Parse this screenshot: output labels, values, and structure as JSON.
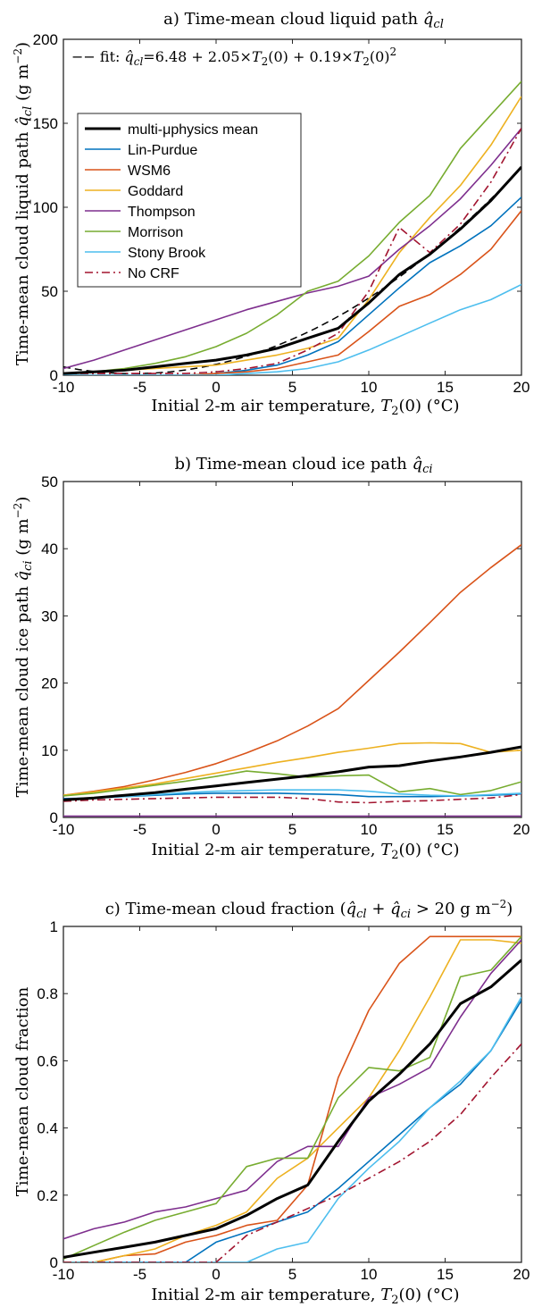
{
  "chart_data": [
    {
      "type": "line",
      "title": "a) Time-mean cloud liquid path q̂cl",
      "xlabel": "Initial 2-m air temperature, T₂(0) (°C)",
      "ylabel": "Time-mean cloud liquid path q̂cl (g m⁻²)",
      "xlim": [
        -10,
        20
      ],
      "ylim": [
        0,
        200
      ],
      "xticks": [
        -10,
        -5,
        0,
        5,
        10,
        15,
        20
      ],
      "yticks": [
        0,
        50,
        100,
        150,
        200
      ],
      "grid": false,
      "legend_position": "upper-left",
      "annotation": "fit: q̂cl=6.48 + 2.05×T₂(0) + 0.19×T₂(0)²",
      "fit": {
        "a": 6.48,
        "b": 2.05,
        "c": 0.19,
        "color": "#000000"
      },
      "x": [
        -10,
        -8,
        -6,
        -4,
        -2,
        0,
        2,
        4,
        6,
        8,
        10,
        12,
        14,
        16,
        18,
        20
      ],
      "series": [
        {
          "name": "multi-μphysics mean",
          "color": "#000000",
          "values": [
            1,
            2,
            3,
            5,
            7,
            9,
            12,
            16,
            22,
            28,
            43,
            60,
            72,
            87,
            104,
            124
          ]
        },
        {
          "name": "Lin-Purdue",
          "color": "#0072BD",
          "values": [
            0,
            0,
            0,
            0,
            0,
            1,
            3,
            6,
            12,
            20,
            36,
            52,
            67,
            77,
            89,
            106
          ]
        },
        {
          "name": "WSM6",
          "color": "#D95319",
          "values": [
            0,
            0,
            0,
            0,
            0,
            1,
            2,
            4,
            8,
            12,
            26,
            41,
            48,
            60,
            75,
            98
          ]
        },
        {
          "name": "Goddard",
          "color": "#EDB120",
          "values": [
            1,
            2,
            3,
            4,
            5,
            6,
            9,
            12,
            16,
            22,
            45,
            73,
            94,
            113,
            137,
            166
          ]
        },
        {
          "name": "Thompson",
          "color": "#7E2F8E",
          "values": [
            4,
            9,
            15,
            21,
            27,
            33,
            39,
            44,
            49,
            53,
            59,
            75,
            89,
            105,
            125,
            147
          ]
        },
        {
          "name": "Morrison",
          "color": "#77AC30",
          "values": [
            1,
            2,
            4,
            7,
            11,
            17,
            25,
            36,
            50,
            56,
            71,
            91,
            107,
            135,
            155,
            175
          ]
        },
        {
          "name": "Stony Brook",
          "color": "#4DBEEE",
          "values": [
            0,
            0,
            0,
            0,
            0,
            0,
            1,
            2,
            4,
            8,
            15,
            23,
            31,
            39,
            45,
            54
          ]
        },
        {
          "name": "No CRF",
          "color": "#A2142F",
          "dash": "dashdot",
          "values": [
            1,
            1,
            1,
            1,
            1,
            2,
            4,
            7,
            15,
            25,
            50,
            88,
            73,
            90,
            115,
            147
          ]
        }
      ]
    },
    {
      "type": "line",
      "title": "b) Time-mean cloud ice path q̂ci",
      "xlabel": "Initial 2-m air temperature, T₂(0) (°C)",
      "ylabel": "Time-mean cloud ice path q̂ci (g m⁻²)",
      "xlim": [
        -10,
        20
      ],
      "ylim": [
        0,
        50
      ],
      "xticks": [
        -10,
        -5,
        0,
        5,
        10,
        15,
        20
      ],
      "yticks": [
        0,
        10,
        20,
        30,
        40,
        50
      ],
      "grid": false,
      "x": [
        -10,
        -8,
        -6,
        -4,
        -2,
        0,
        2,
        4,
        6,
        8,
        10,
        12,
        14,
        16,
        18,
        20
      ],
      "series": [
        {
          "name": "multi-μphysics mean",
          "color": "#000000",
          "values": [
            2.6,
            2.9,
            3.3,
            3.7,
            4.2,
            4.7,
            5.2,
            5.7,
            6.2,
            6.8,
            7.5,
            7.7,
            8.4,
            9.0,
            9.7,
            10.5
          ]
        },
        {
          "name": "Lin-Purdue",
          "color": "#0072BD",
          "values": [
            2.8,
            2.9,
            3.1,
            3.3,
            3.5,
            3.6,
            3.6,
            3.6,
            3.5,
            3.4,
            3.1,
            3.1,
            3.1,
            3.2,
            3.3,
            3.5
          ]
        },
        {
          "name": "WSM6",
          "color": "#D95319",
          "values": [
            3.3,
            3.9,
            4.6,
            5.6,
            6.7,
            8.0,
            9.6,
            11.4,
            13.6,
            16.2,
            20.4,
            24.6,
            29.0,
            33.5,
            37.2,
            40.6
          ]
        },
        {
          "name": "Goddard",
          "color": "#EDB120",
          "values": [
            3.3,
            3.8,
            4.4,
            5.0,
            5.8,
            6.6,
            7.4,
            8.2,
            8.9,
            9.7,
            10.3,
            11.0,
            11.1,
            11.0,
            9.7,
            10.0
          ]
        },
        {
          "name": "Thompson",
          "color": "#7E2F8E",
          "values": [
            0.2,
            0.2,
            0.2,
            0.2,
            0.2,
            0.2,
            0.2,
            0.2,
            0.2,
            0.2,
            0.2,
            0.2,
            0.2,
            0.2,
            0.2,
            0.2
          ]
        },
        {
          "name": "Morrison",
          "color": "#77AC30",
          "values": [
            3.2,
            3.6,
            4.2,
            4.8,
            5.4,
            6.1,
            6.9,
            6.5,
            6.0,
            6.2,
            6.3,
            3.8,
            4.3,
            3.4,
            4.0,
            5.3
          ]
        },
        {
          "name": "Stony Brook",
          "color": "#4DBEEE",
          "values": [
            2.6,
            2.9,
            3.1,
            3.4,
            3.7,
            3.9,
            4.0,
            4.1,
            4.1,
            4.1,
            3.9,
            3.5,
            3.3,
            3.2,
            3.4,
            3.6
          ]
        },
        {
          "name": "No CRF",
          "color": "#A2142F",
          "dash": "dashdot",
          "values": [
            2.4,
            2.6,
            2.7,
            2.8,
            2.9,
            3.0,
            3.0,
            3.0,
            2.8,
            2.3,
            2.2,
            2.4,
            2.5,
            2.7,
            2.9,
            3.4
          ]
        }
      ]
    },
    {
      "type": "line",
      "title": "c) Time-mean cloud fraction (q̂cl + q̂ci > 20 g m⁻²)",
      "xlabel": "Initial 2-m air temperature, T₂(0) (°C)",
      "ylabel": "Time-mean cloud fraction",
      "xlim": [
        -10,
        20
      ],
      "ylim": [
        0,
        1
      ],
      "xticks": [
        -10,
        -5,
        0,
        5,
        10,
        15,
        20
      ],
      "yticks": [
        0,
        0.2,
        0.4,
        0.6,
        0.8,
        1
      ],
      "grid": false,
      "x": [
        -10,
        -8,
        -6,
        -4,
        -2,
        0,
        2,
        4,
        6,
        8,
        10,
        12,
        14,
        16,
        18,
        20
      ],
      "series": [
        {
          "name": "multi-μphysics mean",
          "color": "#000000",
          "values": [
            0.015,
            0.03,
            0.045,
            0.06,
            0.08,
            0.1,
            0.14,
            0.19,
            0.23,
            0.36,
            0.48,
            0.56,
            0.65,
            0.77,
            0.82,
            0.9
          ]
        },
        {
          "name": "Lin-Purdue",
          "color": "#0072BD",
          "values": [
            0,
            0,
            0,
            0,
            0,
            0.06,
            0.09,
            0.12,
            0.15,
            0.22,
            0.3,
            0.38,
            0.46,
            0.53,
            0.63,
            0.78
          ]
        },
        {
          "name": "WSM6",
          "color": "#D95319",
          "values": [
            0,
            0,
            0.02,
            0.025,
            0.06,
            0.08,
            0.11,
            0.125,
            0.23,
            0.55,
            0.75,
            0.89,
            0.97,
            0.97,
            0.97,
            0.97
          ]
        },
        {
          "name": "Goddard",
          "color": "#EDB120",
          "values": [
            0,
            0,
            0.02,
            0.04,
            0.08,
            0.11,
            0.15,
            0.25,
            0.31,
            0.4,
            0.49,
            0.63,
            0.79,
            0.96,
            0.96,
            0.95
          ]
        },
        {
          "name": "Thompson",
          "color": "#7E2F8E",
          "values": [
            0.07,
            0.1,
            0.12,
            0.15,
            0.165,
            0.19,
            0.215,
            0.3,
            0.345,
            0.345,
            0.49,
            0.53,
            0.58,
            0.73,
            0.86,
            0.96
          ]
        },
        {
          "name": "Morrison",
          "color": "#77AC30",
          "values": [
            0.01,
            0.05,
            0.09,
            0.125,
            0.15,
            0.175,
            0.285,
            0.31,
            0.31,
            0.49,
            0.58,
            0.57,
            0.61,
            0.85,
            0.87,
            0.97
          ]
        },
        {
          "name": "Stony Brook",
          "color": "#4DBEEE",
          "values": [
            0,
            0,
            0,
            0,
            0,
            0,
            0,
            0.04,
            0.06,
            0.19,
            0.28,
            0.36,
            0.46,
            0.54,
            0.63,
            0.79
          ]
        },
        {
          "name": "No CRF",
          "color": "#A2142F",
          "dash": "dashdot",
          "values": [
            0,
            0,
            0,
            0,
            0,
            0,
            0.08,
            0.12,
            0.16,
            0.2,
            0.25,
            0.3,
            0.36,
            0.44,
            0.55,
            0.65
          ]
        }
      ]
    }
  ]
}
